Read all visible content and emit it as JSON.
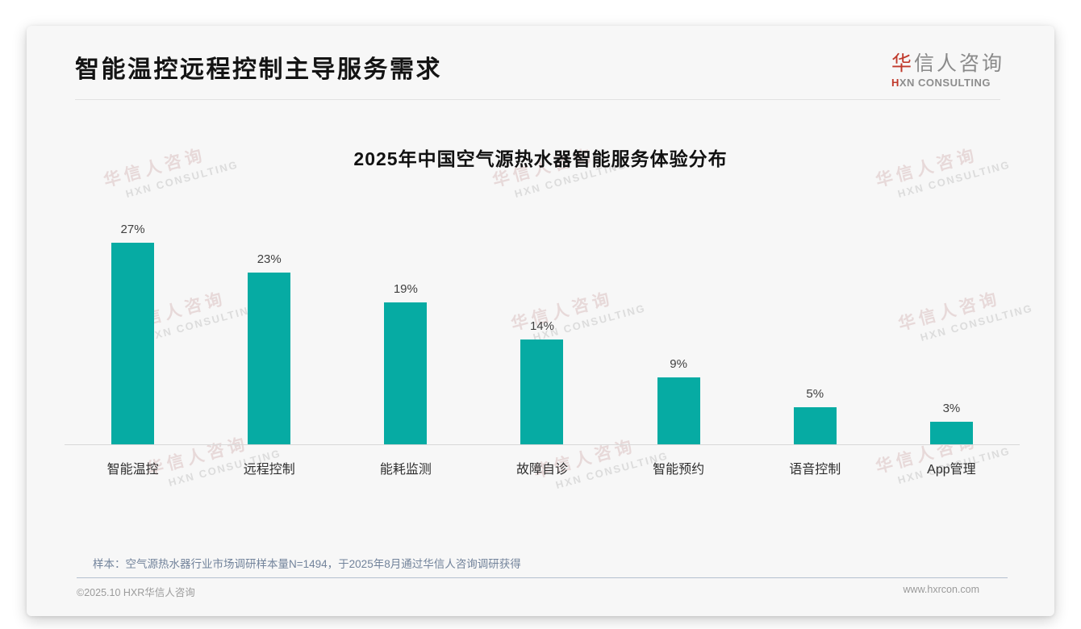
{
  "header": {
    "title": "智能温控远程控制主导服务需求"
  },
  "logo": {
    "cn_accent": "华",
    "cn_rest": "信人咨询",
    "en_accent": "H",
    "en_rest": "XN CONSULTING"
  },
  "watermark": {
    "cn": "华信人咨询",
    "en": "HXN CONSULTING"
  },
  "chart_data": {
    "type": "bar",
    "title": "2025年中国空气源热水器智能服务体验分布",
    "categories": [
      "智能温控",
      "远程控制",
      "能耗监测",
      "故障自诊",
      "智能预约",
      "语音控制",
      "App管理"
    ],
    "values": [
      27,
      23,
      19,
      14,
      9,
      5,
      3
    ],
    "data_labels": [
      "27%",
      "23%",
      "19%",
      "14%",
      "9%",
      "5%",
      "3%"
    ],
    "unit": "%",
    "xlabel": "",
    "ylabel": "",
    "ylim": [
      0,
      28
    ],
    "grid": false,
    "legend": "none",
    "bar_color": "#06aba3"
  },
  "footnote": "样本：空气源热水器行业市场调研样本量N=1494，于2025年8月通过华信人咨询调研获得",
  "footer": {
    "left": "©2025.10 HXR华信人咨询",
    "right": "www.hxrcon.com"
  },
  "colors": {
    "accent_red": "#c0392b",
    "bar": "#06aba3",
    "title_text": "#141414",
    "footnote_text": "#72839b",
    "card_bg": "#f7f7f7"
  }
}
